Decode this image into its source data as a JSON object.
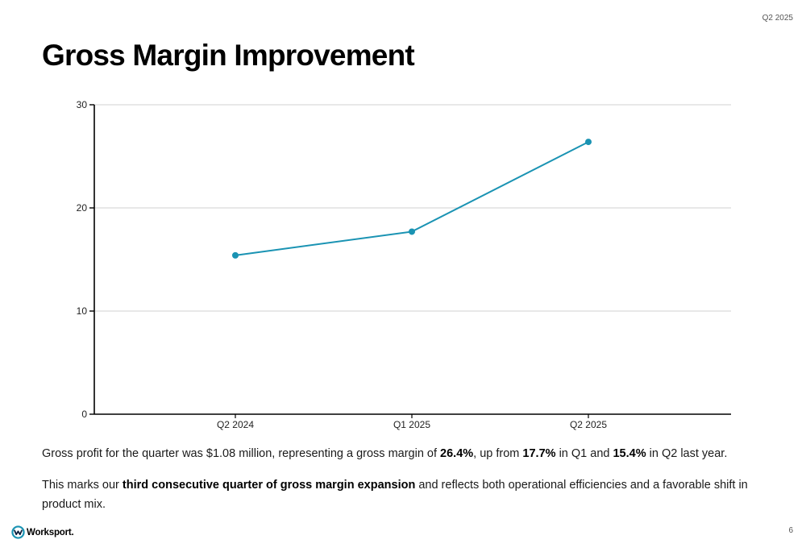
{
  "slide": {
    "period": "Q2 2025",
    "title": "Gross Margin Improvement",
    "page_number": "6",
    "logo_text": "Worksport."
  },
  "paragraph1": {
    "t1": "Gross profit for the quarter was $1.08 million, representing a gross margin of ",
    "b1": "26.4%",
    "t2": ", up from ",
    "b2": "17.7%",
    "t3": " in Q1 and ",
    "b3": "15.4%",
    "t4": " in Q2 last year."
  },
  "paragraph2": {
    "t1": "This marks our ",
    "b1": "third consecutive quarter of gross margin expansion",
    "t2": " and reflects both operational efficiencies and a favorable shift in product mix."
  },
  "chart_data": {
    "type": "line",
    "title": "",
    "xlabel": "",
    "ylabel": "",
    "categories": [
      "Q2 2024",
      "Q1 2025",
      "Q2 2025"
    ],
    "series": [
      {
        "values": [
          15.4,
          17.7,
          26.4
        ],
        "color": "#1a93b3"
      }
    ],
    "ylim": [
      0,
      30
    ],
    "yticks": [
      0,
      10,
      20,
      30
    ],
    "grid": true,
    "legend": "none"
  }
}
